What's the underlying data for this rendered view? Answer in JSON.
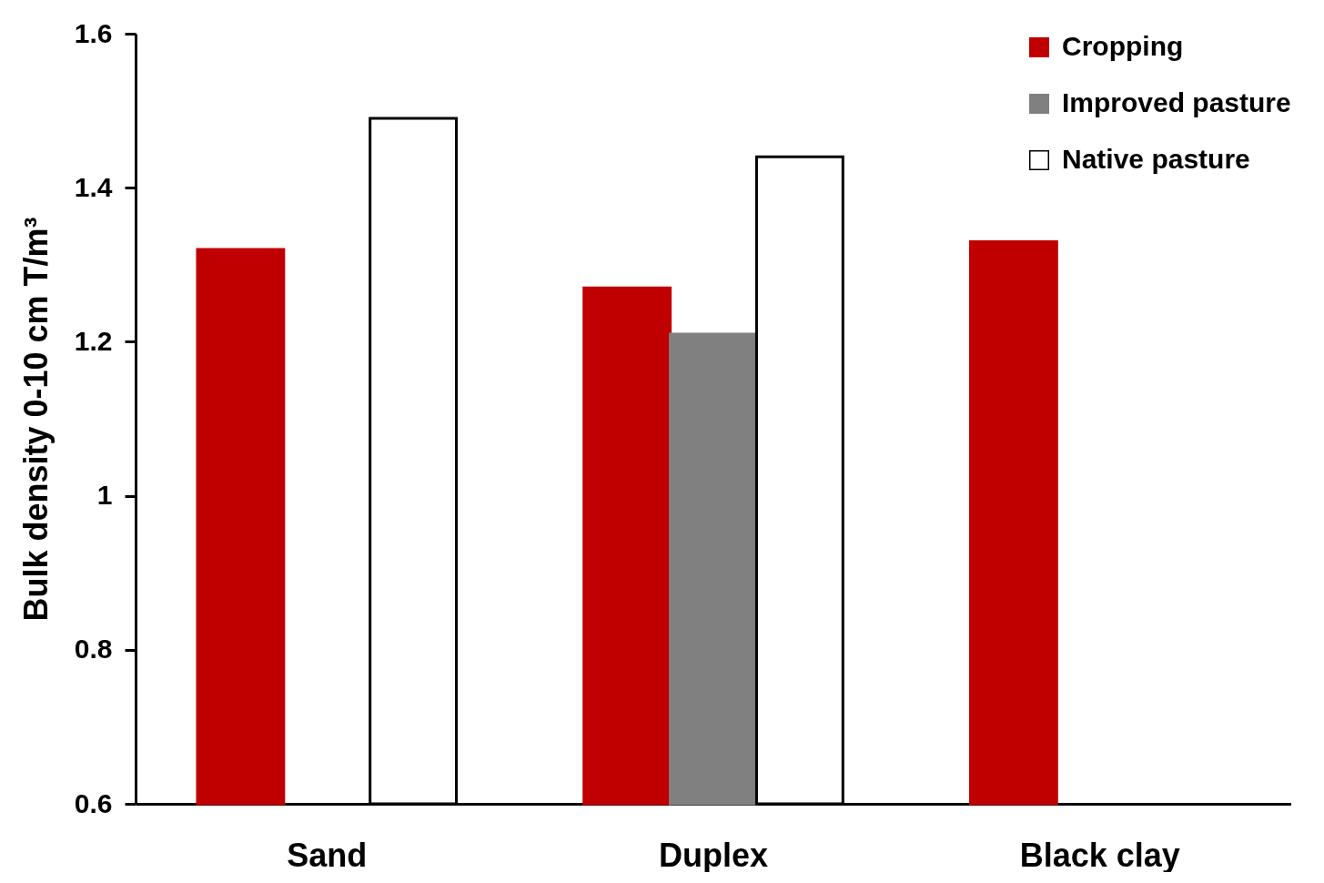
{
  "chart_data": {
    "type": "bar",
    "ylabel": "Bulk density 0-10 cm T/m³",
    "categories": [
      "Sand",
      "Duplex",
      "Black clay"
    ],
    "series": [
      {
        "name": "Cropping",
        "color": "#c00000",
        "values": [
          1.32,
          1.27,
          1.33
        ]
      },
      {
        "name": "Improved pasture",
        "color": "#808080",
        "values": [
          null,
          1.21,
          null
        ]
      },
      {
        "name": "Native pasture",
        "color": "#ffffff",
        "values": [
          1.49,
          1.44,
          null
        ]
      }
    ],
    "ylim": [
      0.6,
      1.6
    ],
    "yticks": [
      0.6,
      0.8,
      {
        "value": 1,
        "label": "1"
      },
      1.2,
      1.4,
      1.6
    ],
    "grid": false,
    "legend": "top right"
  }
}
